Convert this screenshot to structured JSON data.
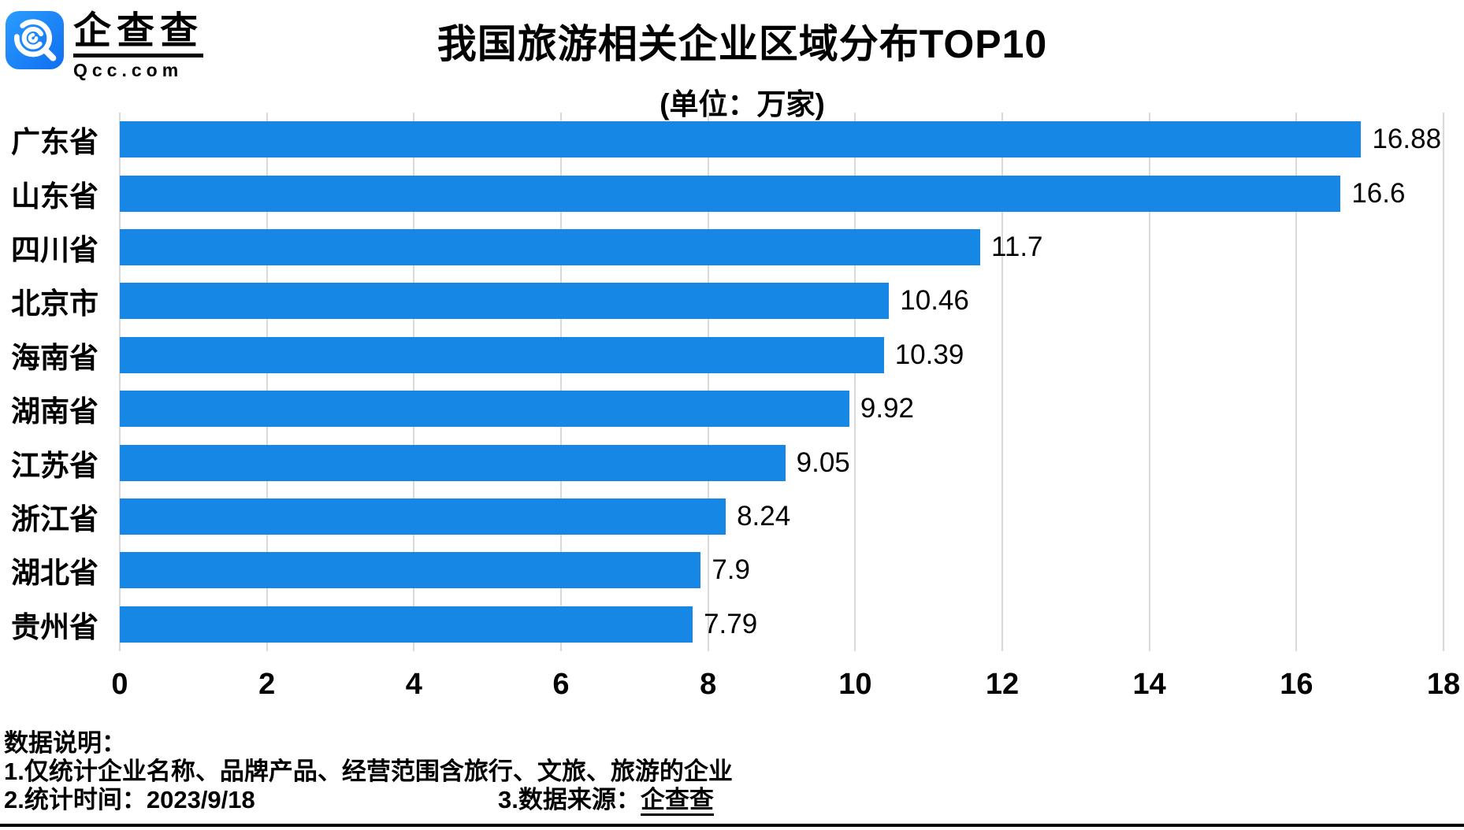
{
  "header": {
    "brand_name": "企查查",
    "brand_domain": "Qcc.com"
  },
  "title": {
    "main": "我国旅游相关企业区域分布TOP10",
    "unit": "(单位：万家)"
  },
  "chart_data": {
    "type": "bar",
    "orientation": "horizontal",
    "title": "我国旅游相关企业区域分布TOP10",
    "unit_label": "(单位：万家)",
    "categories": [
      "广东省",
      "山东省",
      "四川省",
      "北京市",
      "海南省",
      "湖南省",
      "江苏省",
      "浙江省",
      "湖北省",
      "贵州省"
    ],
    "values": [
      16.88,
      16.6,
      11.7,
      10.46,
      10.39,
      9.92,
      9.05,
      8.24,
      7.9,
      7.79
    ],
    "value_labels": [
      "16.88",
      "16.6",
      "11.7",
      "10.46",
      "10.39",
      "9.92",
      "9.05",
      "8.24",
      "7.9",
      "7.79"
    ],
    "xlim": [
      0,
      18
    ],
    "xticks": [
      0,
      2,
      4,
      6,
      8,
      10,
      12,
      14,
      16,
      18
    ],
    "grid": true,
    "legend": "none",
    "bar_color": "#1787e6",
    "gridline_color": "#d9d9d9"
  },
  "footer": {
    "heading": "数据说明：",
    "note1": "1.仅统计企业名称、品牌产品、经营范围含旅行、文旅、旅游的企业",
    "note2": "2.统计时间：2023/9/18",
    "note3_label": "3.数据来源：",
    "note3_source": "企查查"
  }
}
